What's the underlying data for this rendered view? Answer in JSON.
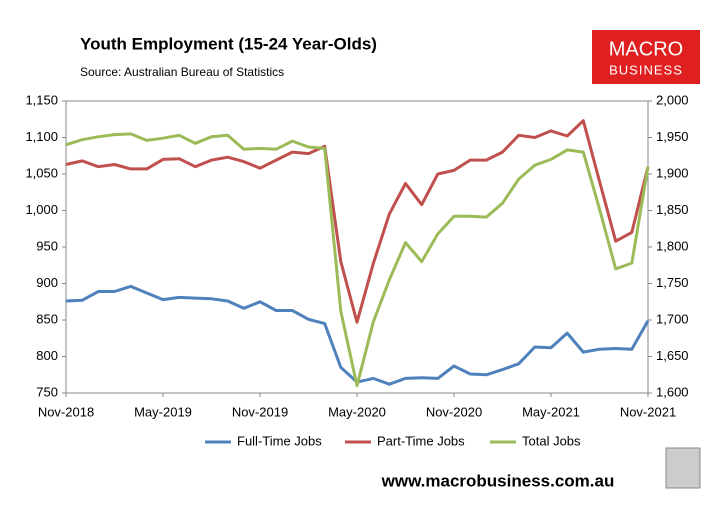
{
  "chart_data": {
    "type": "line",
    "title": "Youth Employment (15-24 Year-Olds)",
    "subtitle": "Source: Australian Bureau of Statistics",
    "logo": [
      "MACRO",
      "BUSINESS"
    ],
    "footer": "www.macrobusiness.com.au",
    "categories": [
      "Nov-2018",
      null,
      null,
      null,
      null,
      null,
      "May-2019",
      null,
      null,
      null,
      null,
      null,
      "Nov-2019",
      null,
      null,
      null,
      null,
      null,
      "May-2020",
      null,
      null,
      null,
      null,
      null,
      "Nov-2020",
      null,
      null,
      null,
      null,
      null,
      "May-2021",
      null,
      null,
      null,
      null,
      null,
      "Nov-2021"
    ],
    "series": [
      {
        "name": "Full-Time Jobs",
        "color": "#4f81bd",
        "axis": "y",
        "values": [
          876,
          877,
          889,
          889,
          896,
          887,
          878,
          881,
          880,
          879,
          876,
          866,
          875,
          863,
          863,
          851,
          845,
          785,
          765,
          770,
          762,
          770,
          771,
          770,
          787,
          776,
          775,
          782,
          790,
          813,
          812,
          832,
          806,
          810,
          811,
          810,
          849
        ]
      },
      {
        "name": "Part-Time Jobs",
        "color": "#c0504d",
        "axis": "y",
        "values": [
          1063,
          1068,
          1060,
          1063,
          1057,
          1057,
          1070,
          1071,
          1060,
          1069,
          1073,
          1067,
          1058,
          1069,
          1080,
          1078,
          1088,
          930,
          847,
          927,
          995,
          1037,
          1008,
          1050,
          1055,
          1069,
          1069,
          1080,
          1103,
          1100,
          1109,
          1102,
          1123,
          1040,
          958,
          970,
          1060
        ]
      },
      {
        "name": "Total Jobs",
        "color": "#9bbb59",
        "axis": "y2",
        "values": [
          1940,
          1947,
          1951,
          1954,
          1955,
          1946,
          1949,
          1953,
          1942,
          1951,
          1953,
          1934,
          1935,
          1934,
          1945,
          1937,
          1935,
          1712,
          1610,
          1697,
          1755,
          1806,
          1780,
          1818,
          1842,
          1842,
          1841,
          1860,
          1893,
          1912,
          1920,
          1933,
          1930,
          1852,
          1770,
          1778,
          1910
        ]
      }
    ],
    "ylim": [
      750,
      1150
    ],
    "yticks": [
      750,
      800,
      850,
      900,
      950,
      {
        "value": 1000,
        "label": "1,000"
      },
      {
        "value": 1050,
        "label": "1,050"
      },
      {
        "value": 1100,
        "label": "1,100"
      },
      {
        "value": 1150,
        "label": "1,150"
      }
    ],
    "y2lim": [
      1600,
      2000
    ],
    "y2ticks": [
      {
        "value": 1600,
        "label": "1,600"
      },
      {
        "value": 1650,
        "label": "1,650"
      },
      {
        "value": 1700,
        "label": "1,700"
      },
      {
        "value": 1750,
        "label": "1,750"
      },
      {
        "value": 1800,
        "label": "1,800"
      },
      {
        "value": 1850,
        "label": "1,850"
      },
      {
        "value": 1900,
        "label": "1,900"
      },
      {
        "value": 1950,
        "label": "1,950"
      },
      {
        "value": 2000,
        "label": "2,000"
      }
    ],
    "grid": false,
    "legend": "bottom"
  }
}
